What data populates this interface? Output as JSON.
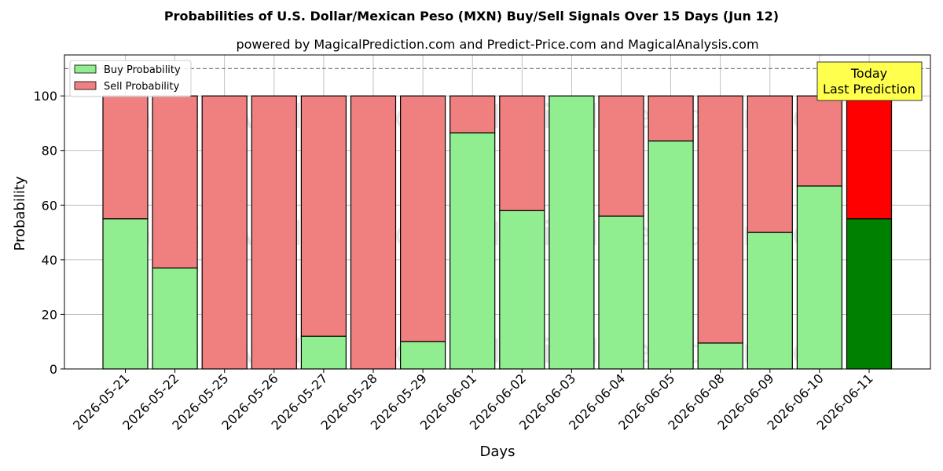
{
  "chart_data": {
    "type": "bar",
    "stacked": true,
    "title": "Probabilities of U.S. Dollar/Mexican Peso (MXN) Buy/Sell Signals Over 15 Days (Jun 12)",
    "subtitle": "powered by MagicalPrediction.com and Predict-Price.com and MagicalAnalysis.com",
    "xlabel": "Days",
    "ylabel": "Probability",
    "ylim": [
      0,
      115
    ],
    "yticks": [
      0,
      20,
      40,
      60,
      80,
      100
    ],
    "grid": true,
    "legend_position": "top-left",
    "reference_line": 110,
    "categories": [
      "2026-05-21",
      "2026-05-22",
      "2026-05-25",
      "2026-05-26",
      "2026-05-27",
      "2026-05-28",
      "2026-05-29",
      "2026-06-01",
      "2026-06-02",
      "2026-06-03",
      "2026-06-04",
      "2026-06-05",
      "2026-06-08",
      "2026-06-09",
      "2026-06-10",
      "2026-06-11"
    ],
    "series": [
      {
        "name": "Buy Probability",
        "color": "#90ee90",
        "values": [
          55,
          37,
          0,
          0,
          12,
          0,
          10,
          86.5,
          58,
          100,
          56,
          83.5,
          9.5,
          50,
          67,
          55
        ]
      },
      {
        "name": "Sell Probability",
        "color": "#f08080",
        "values": [
          45,
          63,
          100,
          100,
          88,
          100,
          90,
          13.5,
          42,
          0,
          44,
          16.5,
          90.5,
          50,
          33,
          45
        ]
      }
    ],
    "highlight": {
      "index": 15,
      "buy_color": "#008000",
      "sell_color": "#ff0000"
    },
    "annotation": {
      "lines": [
        "Today",
        "Last Prediction"
      ],
      "background": "#ffff4d"
    },
    "watermarks": [
      "MagicalAnalysis.com",
      "MagicalPrediction.com"
    ]
  }
}
